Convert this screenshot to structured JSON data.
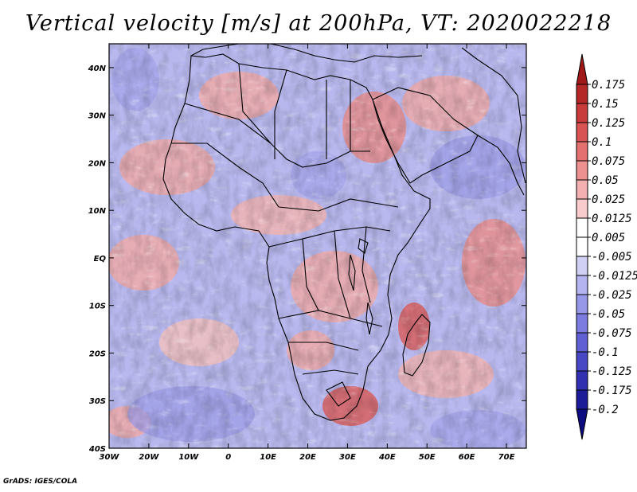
{
  "title": "Vertical velocity [m/s] at 200hPa, VT: 2020022218",
  "credit": "GrADS: IGES/COLA",
  "map": {
    "lat_labels": [
      "40N",
      "30N",
      "20N",
      "10N",
      "EQ",
      "10S",
      "20S",
      "30S",
      "40S"
    ],
    "lon_labels": [
      "30W",
      "20W",
      "10W",
      "0",
      "10E",
      "20E",
      "30E",
      "40E",
      "50E",
      "60E",
      "70E"
    ],
    "lon_range": [
      -30,
      75
    ],
    "lat_range": [
      -40,
      45
    ]
  },
  "colorbar": {
    "labels": [
      "0.175",
      "0.15",
      "0.125",
      "0.1",
      "0.075",
      "0.05",
      "0.025",
      "0.0125",
      "0.005",
      "-0.005",
      "-0.0125",
      "-0.025",
      "-0.05",
      "-0.075",
      "-0.1",
      "-0.125",
      "-0.175",
      "-0.2"
    ],
    "colors": [
      "#a01818",
      "#b42828",
      "#c83c3c",
      "#d85454",
      "#e47070",
      "#ec9090",
      "#f4b0b0",
      "#f8cccc",
      "#ffffff",
      "#ffffff",
      "#d0d0f4",
      "#b4b4f0",
      "#9898e8",
      "#7c7ce0",
      "#6060d4",
      "#4848c4",
      "#3030b0",
      "#1c1c98",
      "#0c0c80"
    ]
  },
  "colors": {
    "positive": "#e08080",
    "negative": "#8080e0",
    "neutral": "#ffffff"
  }
}
